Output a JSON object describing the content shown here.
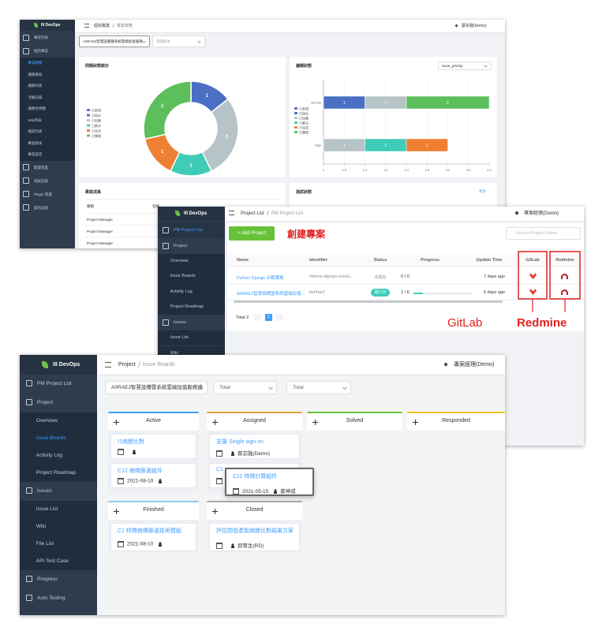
{
  "shot1": {
    "brand": "III DevOps",
    "nav": [
      {
        "label": "專案列表"
      },
      {
        "label": "個別專案",
        "children": [
          {
            "label": "專案總覽"
          },
          {
            "label": "議題看板"
          },
          {
            "label": "議題列表"
          },
          {
            "label": "活動記錄"
          },
          {
            "label": "議題甘特圖"
          },
          {
            "label": "Wiki列表"
          },
          {
            "label": "檔案列表"
          },
          {
            "label": "專案版本"
          },
          {
            "label": "專案設定"
          }
        ]
      },
      {
        "label": "開發進度"
      },
      {
        "label": "測試記錄"
      },
      {
        "label": "Plugin 管理"
      },
      {
        "label": "操作記錄"
      }
    ],
    "breadcrumb": [
      "個別專案",
      "專案總覽"
    ],
    "user": "蔡宗融(Demo)",
    "project_select": "A0RAE2智慧設備暨系統雲端加值服務",
    "version_select": "選擇版本",
    "members": {
      "title": "專案成員",
      "header": [
        "職稱",
        "名稱"
      ],
      "rows": [
        "Project Manager",
        "Project Manager",
        "Project Manager"
      ]
    },
    "tests": {
      "title": "測試狀態",
      "more": "更多"
    }
  },
  "chart_data": [
    {
      "type": "pie",
      "donut": true,
      "title": "問題狀態統計",
      "categories": [
        "已新增",
        "已指派",
        "已回應",
        "已解決",
        "已完成",
        "已關閉"
      ],
      "values": [
        0,
        1,
        2,
        1,
        1,
        2
      ],
      "colors": [
        "#7b5cc4",
        "#4a6fc4",
        "#b7c4c7",
        "#3ecbb8",
        "#ef7f33",
        "#5cbf5c"
      ]
    },
    {
      "type": "bar",
      "orientation": "horizontal",
      "stacked": true,
      "title": "議題狀態",
      "select": "issue_priority",
      "categories": [
        "Normal",
        "High"
      ],
      "series": [
        {
          "name": "已新增",
          "color": "#7b5cc4",
          "values": [
            0,
            0
          ]
        },
        {
          "name": "已指派",
          "color": "#4a6fc4",
          "values": [
            1,
            0
          ]
        },
        {
          "name": "已回應",
          "color": "#b7c4c7",
          "values": [
            1,
            1
          ]
        },
        {
          "name": "已解決",
          "color": "#3ecbb8",
          "values": [
            0,
            1
          ]
        },
        {
          "name": "已完成",
          "color": "#ef7f33",
          "values": [
            0,
            1
          ]
        },
        {
          "name": "已關閉",
          "color": "#5cbf5c",
          "values": [
            2,
            0
          ]
        }
      ],
      "xlim": [
        0,
        4
      ],
      "xticks": [
        0,
        0.5,
        {
          "value": 1,
          "label": "1.0"
        },
        1.5,
        {
          "value": 2,
          "label": "2.0"
        },
        2.5,
        {
          "value": 3,
          "label": "3.0"
        },
        3.5,
        {
          "value": 4,
          "label": "4.0"
        }
      ]
    }
  ],
  "shot2": {
    "brand": "III DevOps",
    "nav": [
      {
        "label": "PM Project List"
      },
      {
        "label": "Project",
        "children": [
          {
            "label": "Overview"
          },
          {
            "label": "Issue Boards"
          },
          {
            "label": "Activity Log"
          },
          {
            "label": "Project Roadmap"
          }
        ]
      },
      {
        "label": "Issues",
        "children": [
          {
            "label": "Issue List"
          },
          {
            "label": "Wiki"
          }
        ]
      }
    ],
    "breadcrumb": [
      "Project List",
      "PM Project List"
    ],
    "user": "專案經理(Demo)",
    "add_button": "+ Add Project",
    "search": "Search Project Name",
    "columns": [
      "Name",
      "Identifier",
      "Status",
      "Progress",
      "Update Time",
      "GitLab",
      "Redmine"
    ],
    "rows": [
      [
        "Python Django 示範專案",
        "#demo-django-maria...",
        "未開始",
        "0 / 0",
        "7 days ago"
      ],
      [
        "A0RAE2智慧設備暨系統雲端加值...",
        "ite0rae2",
        "進行中",
        "1 / 6",
        "6 days ago"
      ]
    ],
    "total": "Total 2",
    "page": "1"
  },
  "shot3": {
    "brand": "III DevOps",
    "nav": [
      {
        "label": "PM Project List"
      },
      {
        "label": "Project",
        "children": [
          {
            "label": "Overview"
          },
          {
            "label": "Issue Boards"
          },
          {
            "label": "Activity Log"
          },
          {
            "label": "Project Roadmap"
          }
        ]
      },
      {
        "label": "Issues",
        "children": [
          {
            "label": "Issue List"
          },
          {
            "label": "Wiki"
          },
          {
            "label": "File List"
          },
          {
            "label": "API Test Case"
          }
        ]
      },
      {
        "label": "Progress"
      },
      {
        "label": "Auto Testing"
      }
    ],
    "breadcrumb": [
      "Project",
      "Issue Boards"
    ],
    "user": "專案經理(Demo)",
    "filters": [
      "A0RAE2智慧設備暨系統雲端加值服務建",
      "Total",
      "Total"
    ],
    "board": [
      {
        "title": "Active",
        "cards": [
          {
            "title": "I1病變比對"
          },
          {
            "title": "C12 病徵篩選組件",
            "date": "2021-08-10"
          }
        ]
      },
      {
        "title": "Assigned",
        "cards": [
          {
            "title": "支援 Single sign on",
            "assignee": "蔡宗融(Demo)"
          },
          {
            "title": "C1"
          }
        ]
      },
      {
        "title": "Solved",
        "cards": []
      },
      {
        "title": "Responded",
        "cards": []
      },
      {
        "title": "Finished",
        "cards": [
          {
            "title": "C1 特徵病徵篩選技術模組",
            "date": "2021-08-10"
          }
        ]
      },
      {
        "title": "Closed",
        "cards": [
          {
            "title": "評估間發產製病變比對結果方案",
            "assignee": "邱育生(RD)"
          }
        ]
      }
    ],
    "dragging": {
      "title": "C11 特徵計算組件",
      "date": "2021-05-15",
      "assignee": "蔡坤成"
    }
  },
  "annotations": {
    "create_project": "創建專案",
    "gitlab": "GitLab",
    "redmine": "Redmine"
  }
}
